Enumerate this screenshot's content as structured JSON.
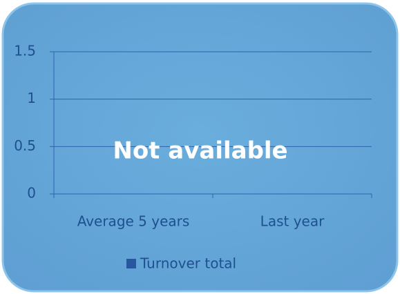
{
  "chart_data": {
    "type": "bar",
    "categories": [
      "Average 5 years",
      "Last year"
    ],
    "series": [
      {
        "name": "Turnover total",
        "color": "#2a55a0",
        "values": [
          null,
          null
        ]
      }
    ],
    "ylim": [
      0,
      1.5
    ],
    "yticks": [
      0,
      0.5,
      1,
      1.5
    ],
    "grid": true,
    "annotation": "Not available",
    "legend": "bottom"
  }
}
